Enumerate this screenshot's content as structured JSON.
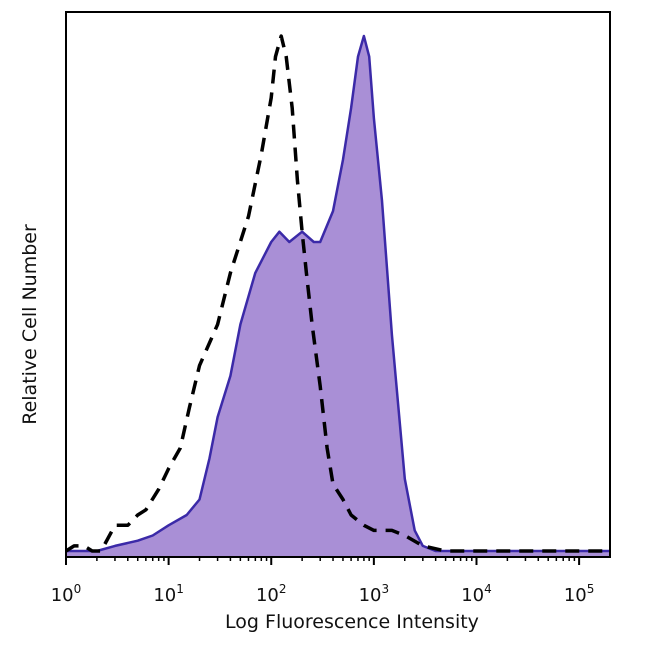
{
  "chart_data": {
    "type": "area",
    "xlabel": "Log Fluorescence Intensity",
    "ylabel": "Relative Cell Number",
    "x_scale": "log",
    "xlim": [
      1,
      200000
    ],
    "ylim": [
      0,
      1
    ],
    "grid": false,
    "legend": "none",
    "x_ticks": [
      {
        "value": 1,
        "base": "10",
        "exp": "0"
      },
      {
        "value": 10,
        "base": "10",
        "exp": "1"
      },
      {
        "value": 100,
        "base": "10",
        "exp": "2"
      },
      {
        "value": 1000,
        "base": "10",
        "exp": "3"
      },
      {
        "value": 10000,
        "base": "10",
        "exp": "4"
      },
      {
        "value": 100000,
        "base": "10",
        "exp": "5"
      }
    ],
    "series": [
      {
        "style": "dashed",
        "color": "#000000",
        "points": [
          [
            1,
            0.0
          ],
          [
            1.2,
            0.01
          ],
          [
            1.5,
            0.01
          ],
          [
            1.8,
            0.0
          ],
          [
            2.2,
            0.0
          ],
          [
            3,
            0.05
          ],
          [
            4,
            0.05
          ],
          [
            5,
            0.07
          ],
          [
            6,
            0.08
          ],
          [
            8,
            0.12
          ],
          [
            10,
            0.16
          ],
          [
            13,
            0.2
          ],
          [
            16,
            0.28
          ],
          [
            20,
            0.36
          ],
          [
            30,
            0.44
          ],
          [
            40,
            0.54
          ],
          [
            60,
            0.65
          ],
          [
            80,
            0.77
          ],
          [
            100,
            0.88
          ],
          [
            110,
            0.96
          ],
          [
            125,
            1.0
          ],
          [
            140,
            0.96
          ],
          [
            160,
            0.86
          ],
          [
            180,
            0.72
          ],
          [
            200,
            0.62
          ],
          [
            220,
            0.54
          ],
          [
            250,
            0.44
          ],
          [
            300,
            0.32
          ],
          [
            350,
            0.2
          ],
          [
            400,
            0.13
          ],
          [
            500,
            0.1
          ],
          [
            600,
            0.07
          ],
          [
            800,
            0.05
          ],
          [
            1000,
            0.04
          ],
          [
            1500,
            0.04
          ],
          [
            2000,
            0.03
          ],
          [
            3000,
            0.01
          ],
          [
            5000,
            0.0
          ],
          [
            10000,
            0.0
          ],
          [
            30000,
            0.0
          ],
          [
            100000,
            0.0
          ],
          [
            200000,
            0.0
          ]
        ]
      },
      {
        "style": "filled",
        "color": "#3b2aa8",
        "fill": "#a98fd6",
        "points": [
          [
            1,
            0.0
          ],
          [
            2,
            0.0
          ],
          [
            3,
            0.01
          ],
          [
            5,
            0.02
          ],
          [
            7,
            0.03
          ],
          [
            10,
            0.05
          ],
          [
            15,
            0.07
          ],
          [
            20,
            0.1
          ],
          [
            25,
            0.18
          ],
          [
            30,
            0.26
          ],
          [
            40,
            0.34
          ],
          [
            50,
            0.44
          ],
          [
            70,
            0.54
          ],
          [
            100,
            0.6
          ],
          [
            120,
            0.62
          ],
          [
            150,
            0.6
          ],
          [
            200,
            0.62
          ],
          [
            260,
            0.6
          ],
          [
            300,
            0.6
          ],
          [
            400,
            0.66
          ],
          [
            500,
            0.76
          ],
          [
            600,
            0.86
          ],
          [
            700,
            0.96
          ],
          [
            800,
            1.0
          ],
          [
            900,
            0.96
          ],
          [
            1000,
            0.84
          ],
          [
            1200,
            0.68
          ],
          [
            1500,
            0.42
          ],
          [
            2000,
            0.14
          ],
          [
            2500,
            0.04
          ],
          [
            3000,
            0.01
          ],
          [
            4000,
            0.0
          ],
          [
            10000,
            0.0
          ],
          [
            100000,
            0.0
          ],
          [
            200000,
            0.0
          ]
        ]
      }
    ]
  }
}
